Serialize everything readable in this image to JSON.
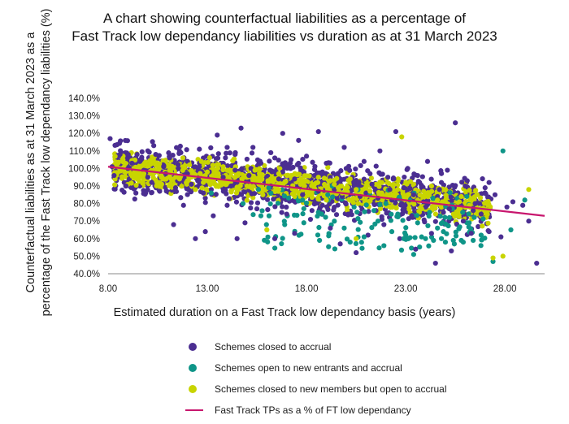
{
  "chart_data": {
    "type": "scatter",
    "title_line1": "A chart showing counterfactual liabilities as a percentage of",
    "title_line2": "Fast Track low dependancy liabilities vs duration as at 31 March 2023",
    "ylabel_line1": "Counterfactual liabilities as at 31 March 2023 as a",
    "ylabel_line2": "percentage of the Fast Track low dependancy liabilities (%)",
    "xlabel": "Estimated duration on a Fast Track low dependancy basis (years)",
    "xlim": [
      8,
      30
    ],
    "ylim": [
      40,
      140
    ],
    "xticks": [
      8,
      13,
      18,
      23,
      28
    ],
    "xtick_labels": [
      "8.00",
      "13.00",
      "18.00",
      "23.00",
      "28.00"
    ],
    "yticks": [
      40,
      50,
      60,
      70,
      80,
      90,
      100,
      110,
      120,
      130,
      140
    ],
    "ytick_labels": [
      "40.0%",
      "50.0%",
      "60.0%",
      "70.0%",
      "80.0%",
      "90.0%",
      "100.0%",
      "110.0%",
      "120.0%",
      "130.0%",
      "140.0%"
    ],
    "grid": false,
    "legend_position": "bottom",
    "series": [
      {
        "name": "Schemes closed to accrual",
        "color": "#4b2e91",
        "marker": "dot",
        "points": [
          [
            8.1,
            117
          ],
          [
            8.2,
            101
          ],
          [
            8.3,
            96
          ],
          [
            8.6,
            108
          ],
          [
            8.9,
            90
          ],
          [
            9.2,
            103
          ],
          [
            9.4,
            86
          ],
          [
            9.8,
            99
          ],
          [
            10.0,
            95
          ],
          [
            10.3,
            113
          ],
          [
            10.6,
            87
          ],
          [
            10.9,
            97
          ],
          [
            11.1,
            106
          ],
          [
            11.3,
            68
          ],
          [
            11.5,
            93
          ],
          [
            11.8,
            79
          ],
          [
            12.0,
            104
          ],
          [
            12.2,
            91
          ],
          [
            12.4,
            60
          ],
          [
            12.6,
            111
          ],
          [
            12.8,
            86
          ],
          [
            12.9,
            64
          ],
          [
            13.1,
            98
          ],
          [
            13.3,
            73
          ],
          [
            13.5,
            119
          ],
          [
            13.8,
            103
          ],
          [
            14.0,
            79
          ],
          [
            14.2,
            90
          ],
          [
            14.4,
            108
          ],
          [
            14.5,
            60
          ],
          [
            14.7,
            123
          ],
          [
            14.9,
            69
          ],
          [
            15.1,
            96
          ],
          [
            15.3,
            112
          ],
          [
            15.5,
            77
          ],
          [
            15.7,
            103
          ],
          [
            15.9,
            85
          ],
          [
            16.2,
            109
          ],
          [
            16.4,
            60
          ],
          [
            16.6,
            94
          ],
          [
            16.8,
            120
          ],
          [
            17.0,
            74
          ],
          [
            17.2,
            100
          ],
          [
            17.4,
            63
          ],
          [
            17.6,
            116
          ],
          [
            17.8,
            85
          ],
          [
            18.0,
            107
          ],
          [
            18.2,
            71
          ],
          [
            18.4,
            96
          ],
          [
            18.6,
            121
          ],
          [
            18.8,
            79
          ],
          [
            19.0,
            103
          ],
          [
            19.2,
            66
          ],
          [
            19.4,
            88
          ],
          [
            19.7,
            57
          ],
          [
            19.9,
            112
          ],
          [
            20.1,
            74
          ],
          [
            20.3,
            95
          ],
          [
            20.5,
            52
          ],
          [
            20.7,
            84
          ],
          [
            20.9,
            104
          ],
          [
            21.1,
            62
          ],
          [
            21.3,
            91
          ],
          [
            21.5,
            76
          ],
          [
            21.7,
            110
          ],
          [
            21.9,
            68
          ],
          [
            22.1,
            95
          ],
          [
            22.3,
            82
          ],
          [
            22.5,
            121
          ],
          [
            22.7,
            60
          ],
          [
            22.9,
            89
          ],
          [
            23.1,
            100
          ],
          [
            23.3,
            73
          ],
          [
            23.5,
            54
          ],
          [
            23.7,
            92
          ],
          [
            23.9,
            81
          ],
          [
            24.1,
            104
          ],
          [
            24.3,
            63
          ],
          [
            24.5,
            46
          ],
          [
            24.7,
            88
          ],
          [
            24.9,
            75
          ],
          [
            25.1,
            99
          ],
          [
            25.3,
            53
          ],
          [
            25.5,
            126
          ],
          [
            25.7,
            84
          ],
          [
            25.9,
            70
          ],
          [
            26.1,
            93
          ],
          [
            26.3,
            63
          ],
          [
            26.5,
            80
          ],
          [
            26.8,
            74
          ],
          [
            27.0,
            89
          ],
          [
            27.2,
            64
          ],
          [
            27.5,
            85
          ],
          [
            27.8,
            61
          ],
          [
            28.1,
            78
          ],
          [
            28.4,
            81
          ],
          [
            28.9,
            79
          ],
          [
            29.2,
            70
          ],
          [
            29.6,
            46
          ],
          [
            9.0,
            100
          ],
          [
            9.6,
            104
          ],
          [
            10.2,
            92
          ],
          [
            10.8,
            101
          ],
          [
            11.4,
            89
          ],
          [
            12.0,
            97
          ],
          [
            12.6,
            101
          ],
          [
            13.2,
            88
          ],
          [
            13.8,
            95
          ],
          [
            14.4,
            99
          ],
          [
            15.0,
            92
          ],
          [
            15.6,
            104
          ],
          [
            16.2,
            90
          ],
          [
            16.8,
            98
          ],
          [
            17.4,
            94
          ],
          [
            18.0,
            90
          ],
          [
            18.6,
            87
          ],
          [
            19.2,
            95
          ],
          [
            19.8,
            84
          ],
          [
            20.4,
            90
          ],
          [
            21.0,
            86
          ],
          [
            21.6,
            83
          ],
          [
            22.2,
            88
          ],
          [
            22.8,
            80
          ],
          [
            23.4,
            85
          ],
          [
            24.0,
            78
          ],
          [
            24.6,
            84
          ],
          [
            25.2,
            77
          ],
          [
            25.8,
            82
          ],
          [
            26.4,
            76
          ],
          [
            10.4,
            108
          ],
          [
            11.6,
            110
          ],
          [
            12.8,
            106
          ],
          [
            14.0,
            112
          ],
          [
            15.2,
            100
          ],
          [
            16.4,
            106
          ],
          [
            17.6,
            103
          ],
          [
            18.8,
            98
          ],
          [
            20.0,
            100
          ],
          [
            21.2,
            97
          ],
          [
            22.4,
            94
          ],
          [
            23.6,
            96
          ],
          [
            24.8,
            92
          ],
          [
            26.0,
            90
          ],
          [
            27.2,
            92
          ]
        ]
      },
      {
        "name": "Schemes open to new entrants and accrual",
        "color": "#0f9588",
        "marker": "dot",
        "points": [
          [
            13.2,
            86
          ],
          [
            14.8,
            80
          ],
          [
            15.7,
            73
          ],
          [
            16.1,
            89
          ],
          [
            16.9,
            68
          ],
          [
            17.8,
            82
          ],
          [
            18.6,
            75
          ],
          [
            19.3,
            90
          ],
          [
            19.9,
            66
          ],
          [
            20.4,
            78
          ],
          [
            20.9,
            61
          ],
          [
            21.2,
            85
          ],
          [
            21.6,
            70
          ],
          [
            21.9,
            56
          ],
          [
            22.3,
            64
          ],
          [
            22.6,
            74
          ],
          [
            22.9,
            60
          ],
          [
            23.2,
            82
          ],
          [
            23.4,
            51
          ],
          [
            23.6,
            69
          ],
          [
            23.8,
            61
          ],
          [
            24.0,
            60
          ],
          [
            24.2,
            75
          ],
          [
            24.4,
            59
          ],
          [
            24.6,
            66
          ],
          [
            24.8,
            60
          ],
          [
            25.0,
            58
          ],
          [
            25.2,
            72
          ],
          [
            25.4,
            59
          ],
          [
            25.6,
            83
          ],
          [
            25.9,
            58
          ],
          [
            26.2,
            69
          ],
          [
            26.4,
            59
          ],
          [
            26.8,
            62
          ],
          [
            27.4,
            47
          ],
          [
            27.9,
            110
          ],
          [
            28.3,
            65
          ],
          [
            29.0,
            82
          ],
          [
            20.2,
            58
          ],
          [
            22.0,
            80
          ],
          [
            23.0,
            62
          ],
          [
            24.9,
            64
          ],
          [
            25.8,
            59
          ],
          [
            19.1,
            82
          ],
          [
            21.4,
            76
          ]
        ]
      },
      {
        "name": "Schemes closed to new members but open to accrual",
        "color": "#c8d400",
        "marker": "dot",
        "points": [
          [
            9.3,
            100
          ],
          [
            9.8,
            97
          ],
          [
            10.2,
            103
          ],
          [
            10.7,
            91
          ],
          [
            11.1,
            99
          ],
          [
            11.6,
            94
          ],
          [
            12.1,
            102
          ],
          [
            12.4,
            88
          ],
          [
            12.9,
            96
          ],
          [
            13.3,
            92
          ],
          [
            13.8,
            101
          ],
          [
            14.2,
            87
          ],
          [
            14.6,
            97
          ],
          [
            15.0,
            90
          ],
          [
            15.4,
            99
          ],
          [
            15.8,
            85
          ],
          [
            16.2,
            94
          ],
          [
            16.6,
            88
          ],
          [
            17.0,
            96
          ],
          [
            17.4,
            84
          ],
          [
            17.8,
            93
          ],
          [
            18.2,
            87
          ],
          [
            18.6,
            95
          ],
          [
            19.0,
            82
          ],
          [
            19.4,
            91
          ],
          [
            19.8,
            86
          ],
          [
            20.2,
            94
          ],
          [
            20.6,
            80
          ],
          [
            21.0,
            89
          ],
          [
            21.4,
            84
          ],
          [
            21.8,
            92
          ],
          [
            22.2,
            78
          ],
          [
            22.6,
            88
          ],
          [
            23.0,
            83
          ],
          [
            23.4,
            91
          ],
          [
            23.8,
            77
          ],
          [
            24.2,
            86
          ],
          [
            24.6,
            82
          ],
          [
            25.0,
            88
          ],
          [
            25.4,
            74
          ],
          [
            25.8,
            84
          ],
          [
            26.2,
            79
          ],
          [
            26.6,
            85
          ],
          [
            27.0,
            76
          ],
          [
            27.4,
            49
          ],
          [
            27.9,
            50
          ],
          [
            29.2,
            88
          ],
          [
            22.8,
            118
          ],
          [
            20.5,
            60
          ],
          [
            16.0,
            65
          ],
          [
            11.4,
            95
          ],
          [
            12.7,
            104
          ],
          [
            14.0,
            99
          ],
          [
            15.3,
            93
          ],
          [
            16.6,
            97
          ],
          [
            17.9,
            90
          ],
          [
            19.2,
            93
          ],
          [
            20.5,
            88
          ],
          [
            21.8,
            86
          ],
          [
            23.1,
            85
          ],
          [
            24.4,
            80
          ],
          [
            25.7,
            81
          ],
          [
            12.0,
            93
          ],
          [
            13.0,
            98
          ],
          [
            14.4,
            95
          ],
          [
            15.6,
            91
          ],
          [
            16.9,
            92
          ],
          [
            18.4,
            91
          ],
          [
            19.6,
            89
          ],
          [
            21.2,
            87
          ],
          [
            22.4,
            84
          ],
          [
            23.6,
            82
          ]
        ]
      },
      {
        "name": "Fast Track TPs as a % of FT low dependancy",
        "color": "#c8166e",
        "marker": "line",
        "points": [
          [
            8,
            101
          ],
          [
            30,
            73
          ]
        ]
      }
    ]
  }
}
